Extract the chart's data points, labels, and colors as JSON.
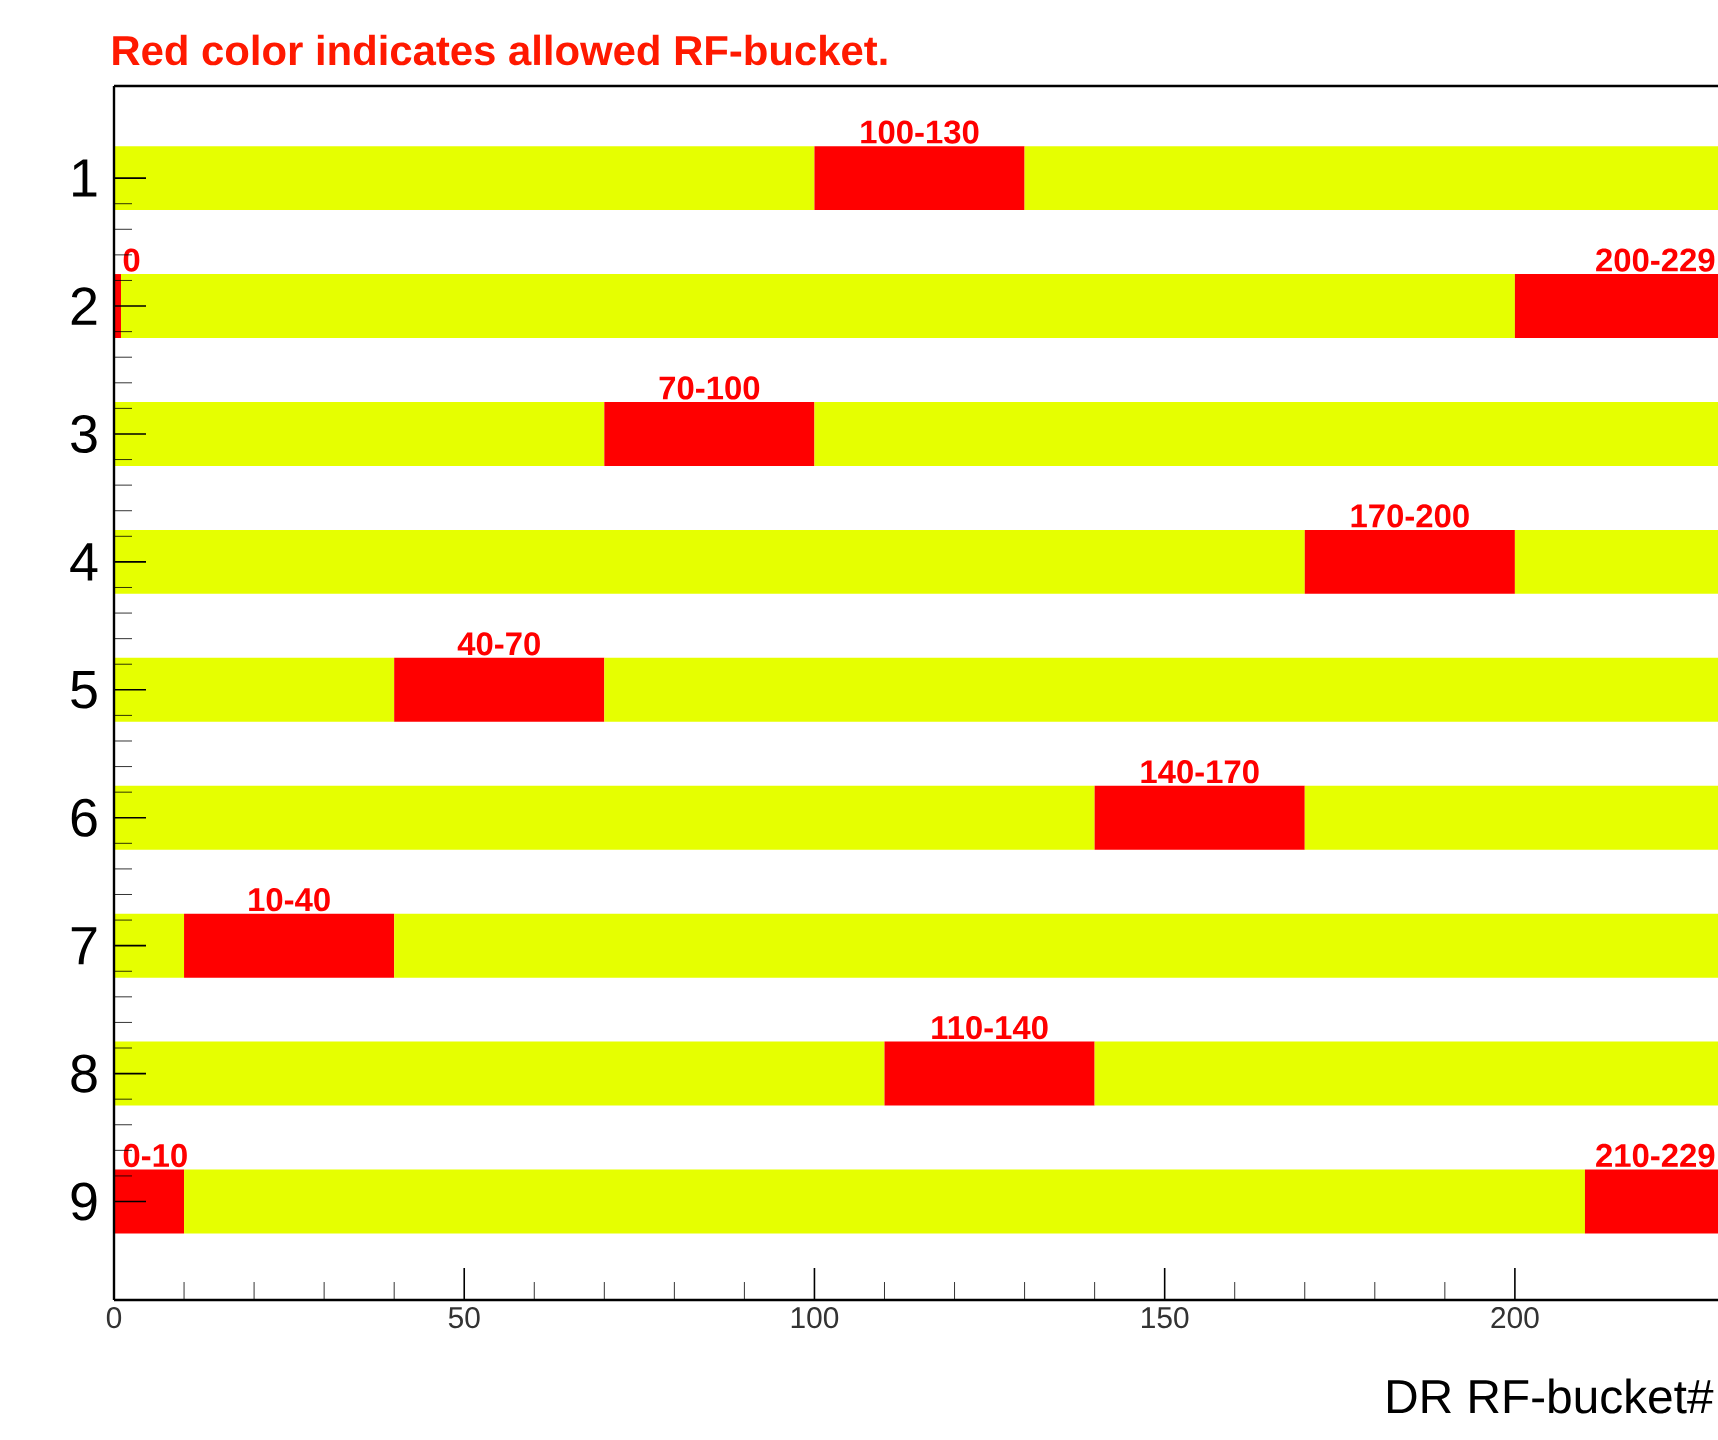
{
  "chart_data": {
    "type": "bar",
    "orientation": "horizontal",
    "stacked": true,
    "title": "Red color indicates allowed RF-bucket.",
    "xlabel": "DR RF-bucket#",
    "categories": [
      "1",
      "2",
      "3",
      "4",
      "5",
      "6",
      "7",
      "8",
      "9"
    ],
    "annotations": [
      {
        "text": "0",
        "x": 0,
        "y": "2"
      }
    ],
    "xlim": [
      0,
      229
    ],
    "xticks": [
      0,
      50,
      100,
      150,
      200
    ],
    "series": [
      {
        "color": "#ff0000",
        "values": [
          null,
          1,
          null,
          null,
          null,
          null,
          null,
          null,
          10
        ],
        "value_labels": [
          null,
          null,
          null,
          null,
          null,
          null,
          null,
          null,
          "0-10"
        ]
      },
      {
        "color": "#e6ff00",
        "values": [
          100,
          199,
          70,
          170,
          40,
          140,
          10,
          110,
          200
        ]
      },
      {
        "color": "#ff0000",
        "values": [
          30,
          29,
          30,
          30,
          30,
          30,
          30,
          30,
          19
        ],
        "value_labels": [
          "100-130",
          "200-229",
          "70-100",
          "170-200",
          "40-70",
          "140-170",
          "10-40",
          "110-140",
          "210-229"
        ]
      },
      {
        "color": "#e6ff00",
        "values": [
          99,
          null,
          129,
          29,
          159,
          59,
          189,
          89,
          null
        ]
      }
    ]
  }
}
